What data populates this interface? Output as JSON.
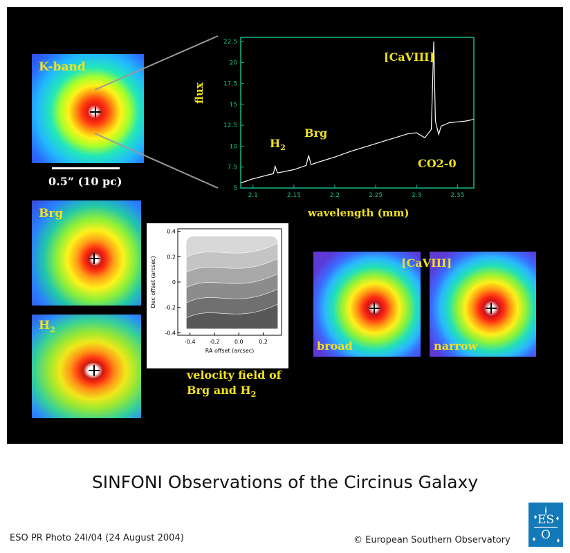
{
  "figure": {
    "title": "SINFONI Observations of the Circinus Galaxy",
    "photo_id": "ESO PR Photo 24l/04 (24 August 2004)",
    "copyright": "© European Southern Observatory",
    "logo_text_top": "ES",
    "logo_text_bottom": "O",
    "colors": {
      "panel_bg": "#000000",
      "label_yellow": "#f2e21c",
      "eso_blue": "#1479b8"
    }
  },
  "panels": {
    "kband_label": "K-band",
    "scale_label": "0.5” (10 pc)",
    "brg_label": "Brg",
    "h2_label_main": "H",
    "h2_label_sub": "2",
    "velocity_caption_line1": "velocity field of",
    "velocity_caption_line2_main": "Brg and H",
    "velocity_caption_line2_sub": "2",
    "caviii_map_label": "[CaVIII]",
    "broad_label": "broad",
    "narrow_label": "narrow"
  },
  "chart_data": [
    {
      "type": "line",
      "xlabel": "wavelength (mm)",
      "ylabel": "flux",
      "xlim": [
        2.085,
        2.37
      ],
      "ylim": [
        5,
        23
      ],
      "xticks": [
        2.1,
        2.15,
        2.2,
        2.25,
        2.3,
        2.35
      ],
      "xtick_labels": [
        "2.1",
        "2.15",
        "2.2",
        "2.25",
        "2.3",
        "2.35"
      ],
      "yticks": [
        5,
        7.5,
        10,
        12.5,
        15,
        17.5,
        20,
        22.5
      ],
      "ytick_labels": [
        "5",
        "7.5",
        "10",
        "12.5",
        "15",
        "17.5",
        "20",
        "22.5"
      ],
      "series": [
        {
          "x": [
            2.085,
            2.1,
            2.12,
            2.125,
            2.127,
            2.13,
            2.15,
            2.165,
            2.168,
            2.171,
            2.18,
            2.2,
            2.22,
            2.24,
            2.26,
            2.28,
            2.29,
            2.3,
            2.31,
            2.318,
            2.321,
            2.323,
            2.325,
            2.327,
            2.33,
            2.335,
            2.34,
            2.35,
            2.36,
            2.37
          ],
          "y": [
            5.6,
            6.1,
            6.6,
            6.7,
            7.6,
            6.8,
            7.2,
            7.7,
            8.9,
            7.8,
            8.1,
            8.7,
            9.4,
            10.0,
            10.6,
            11.2,
            11.5,
            11.6,
            11.0,
            12.0,
            22.5,
            13.0,
            12.2,
            11.4,
            12.4,
            12.6,
            12.8,
            12.9,
            13.0,
            13.2
          ]
        }
      ],
      "annotations": [
        {
          "text_main": "H",
          "text_sub": "2",
          "x": 2.127
        },
        {
          "text": "Brg",
          "x": 2.169
        },
        {
          "text": "[CaVIII]",
          "x": 2.321
        },
        {
          "text": "CO2-0",
          "x": 2.325
        }
      ]
    },
    {
      "type": "heatmap",
      "xlabel": "RA offset (arcsec)",
      "ylabel": "Dec offset (arcsec)",
      "xlim": [
        -0.5,
        0.35
      ],
      "ylim": [
        -0.42,
        0.42
      ],
      "xticks": [
        -0.4,
        -0.2,
        0.0,
        0.2
      ],
      "xtick_labels": [
        "-0.4",
        "-0.2",
        "0.0",
        "0.2"
      ],
      "yticks": [
        -0.4,
        -0.2,
        0.0,
        0.2,
        0.4
      ],
      "ytick_labels": [
        "-0.4",
        "-0.2",
        "0",
        "0.2",
        "0.4"
      ]
    }
  ]
}
